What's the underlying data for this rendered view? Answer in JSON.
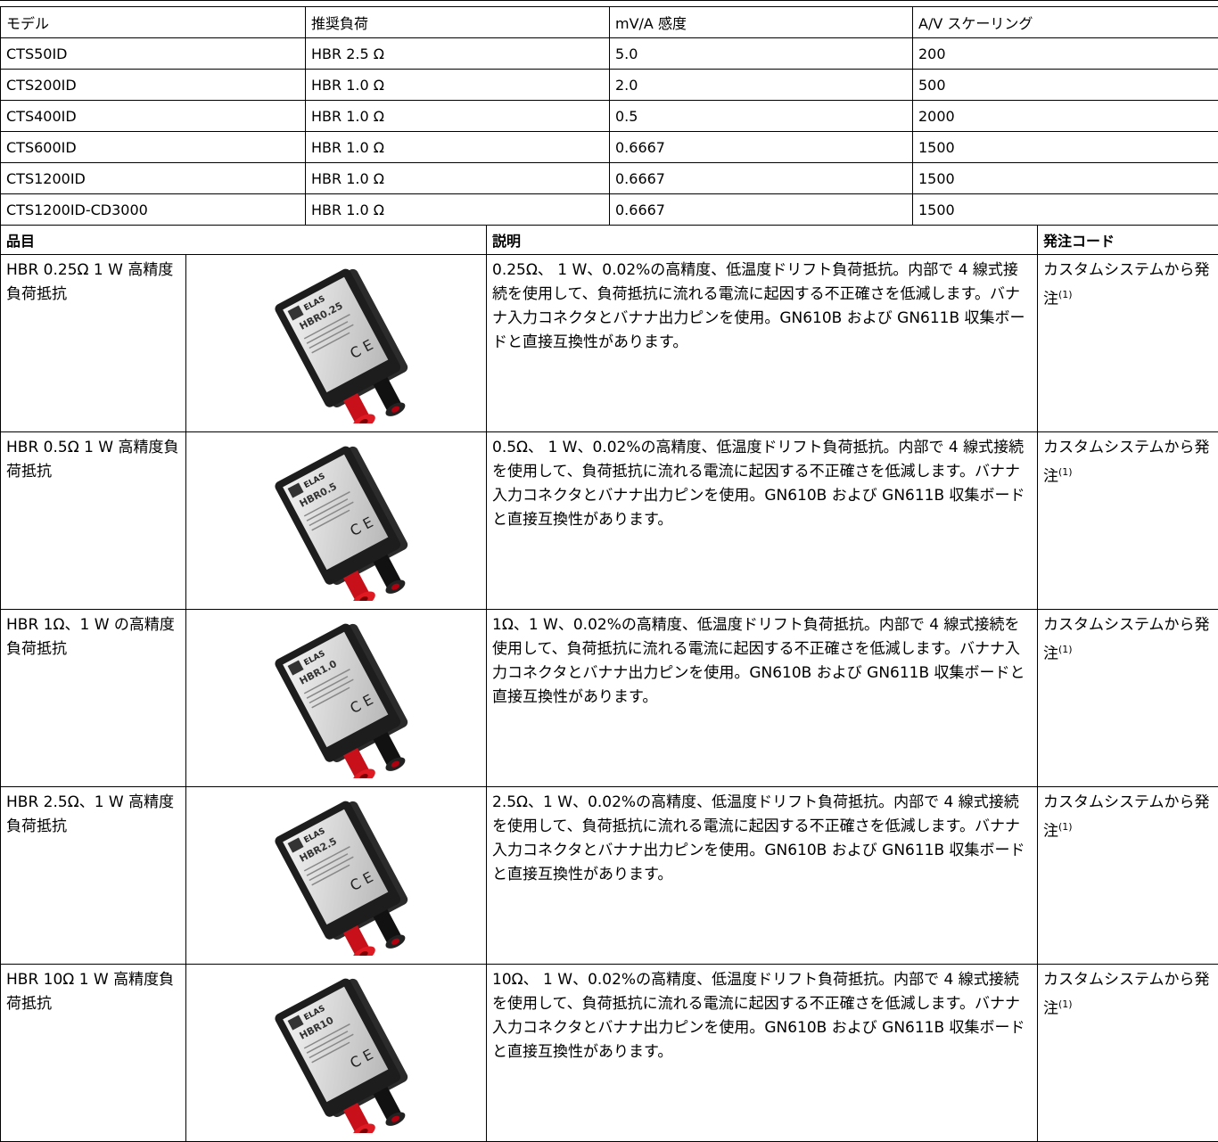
{
  "spec_table": {
    "headers": [
      "モデル",
      "推奨負荷",
      "mV/A 感度",
      "A/V スケーリング"
    ],
    "rows": [
      [
        "CTS50ID",
        "HBR 2.5 Ω",
        "5.0",
        "200"
      ],
      [
        "CTS200ID",
        "HBR 1.0 Ω",
        "2.0",
        "500"
      ],
      [
        "CTS400ID",
        "HBR 1.0 Ω",
        "0.5",
        "2000"
      ],
      [
        "CTS600ID",
        "HBR 1.0 Ω",
        "0.6667",
        "1500"
      ],
      [
        "CTS1200ID",
        "HBR 1.0 Ω",
        "0.6667",
        "1500"
      ],
      [
        "CTS1200ID-CD3000",
        "HBR 1.0 Ω",
        "0.6667",
        "1500"
      ]
    ]
  },
  "product_table": {
    "headers": [
      "品目",
      "説明",
      "発注コード"
    ],
    "rows": [
      {
        "item": "HBR 0.25Ω 1 W 高精度負荷抵抗",
        "image_brand": "ELAS",
        "image_model": "HBR0.25",
        "description": "0.25Ω、 1 W、0.02%の高精度、低温度ドリフト負荷抵抗。内部で 4 線式接続を使用して、負荷抵抗に流れる電流に起因する不正確さを低減します。バナナ入力コネクタとバナナ出力ピンを使用。GN610B および GN611B 収集ボードと直接互換性があります。",
        "order_code": "カスタムシステムから発注",
        "order_note": "(1)"
      },
      {
        "item": "HBR 0.5Ω 1 W 高精度負荷抵抗",
        "image_brand": "ELAS",
        "image_model": "HBR0.5",
        "description": "0.5Ω、 1 W、0.02%の高精度、低温度ドリフト負荷抵抗。内部で 4 線式接続を使用して、負荷抵抗に流れる電流に起因する不正確さを低減します。バナナ入力コネクタとバナナ出力ピンを使用。GN610B および GN611B 収集ボードと直接互換性があります。",
        "order_code": "カスタムシステムから発注",
        "order_note": "(1)"
      },
      {
        "item": "HBR 1Ω、1 W の高精度負荷抵抗",
        "image_brand": "ELAS",
        "image_model": "HBR1.0",
        "description": "1Ω、1 W、0.02%の高精度、低温度ドリフト負荷抵抗。内部で 4 線式接続を使用して、負荷抵抗に流れる電流に起因する不正確さを低減します。バナナ入力コネクタとバナナ出力ピンを使用。GN610B および GN611B 収集ボードと直接互換性があります。",
        "order_code": "カスタムシステムから発注",
        "order_note": "(1)"
      },
      {
        "item": "HBR 2.5Ω、1 W 高精度負荷抵抗",
        "image_brand": "ELAS",
        "image_model": "HBR2.5",
        "description": "2.5Ω、1 W、0.02%の高精度、低温度ドリフト負荷抵抗。内部で 4 線式接続を使用して、負荷抵抗に流れる電流に起因する不正確さを低減します。バナナ入力コネクタとバナナ出力ピンを使用。GN610B および GN611B 収集ボードと直接互換性があります。",
        "order_code": "カスタムシステムから発注",
        "order_note": "(1)"
      },
      {
        "item": "HBR 10Ω 1 W 高精度負荷抵抗",
        "image_brand": "ELAS",
        "image_model": "HBR10",
        "description": "10Ω、 1 W、0.02%の高精度、低温度ドリフト負荷抵抗。内部で 4 線式接続を使用して、負荷抵抗に流れる電流に起因する不正確さを低減します。バナナ入力コネクタとバナナ出力ピンを使用。GN610B および GN611B 収集ボードと直接互換性があります。",
        "order_code": "カスタムシステムから発注",
        "order_note": "(1)"
      }
    ]
  }
}
